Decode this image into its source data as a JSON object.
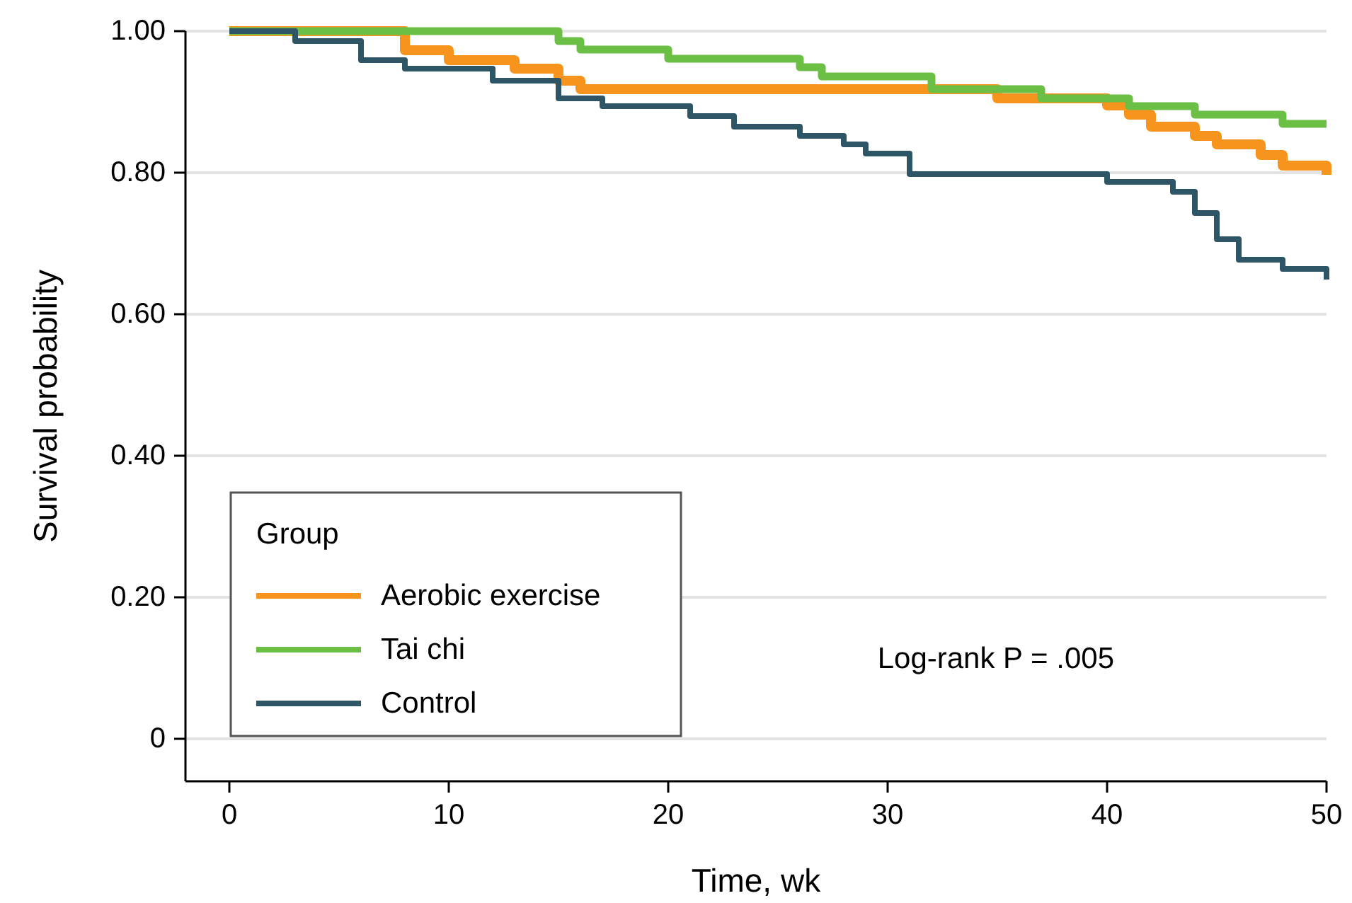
{
  "chart_data": {
    "type": "step",
    "xlabel": "Time, wk",
    "ylabel": "Survival probability",
    "legend_title": "Group",
    "legend": "bottom left",
    "grid": "y",
    "xlim": [
      -2,
      50
    ],
    "xticks": [
      0,
      10,
      20,
      30,
      40,
      50
    ],
    "ylim": [
      -0.06,
      1.0
    ],
    "yticks": [
      {
        "value": 0,
        "label": "0"
      },
      {
        "value": 0.2,
        "label": "0.20"
      },
      {
        "value": 0.4,
        "label": "0.40"
      },
      {
        "value": 0.6,
        "label": "0.60"
      },
      {
        "value": 0.8,
        "label": "0.80"
      },
      {
        "value": 1.0,
        "label": "1.00"
      }
    ],
    "annotations": [
      "Log-rank P = .005"
    ],
    "series": [
      {
        "name": "Aerobic exercise",
        "color": "#f7941d",
        "x": [
          0,
          8,
          10,
          13,
          15,
          16,
          35,
          40,
          41,
          42,
          44,
          45,
          47,
          48,
          50
        ],
        "values": [
          1.0,
          0.973,
          0.959,
          0.947,
          0.93,
          0.918,
          0.905,
          0.895,
          0.882,
          0.865,
          0.852,
          0.84,
          0.825,
          0.81,
          0.797
        ]
      },
      {
        "name": "Tai chi",
        "color": "#6cbf45",
        "x": [
          0,
          15,
          16,
          20,
          26,
          27,
          32,
          37,
          41,
          44,
          48,
          50
        ],
        "values": [
          1.0,
          0.986,
          0.974,
          0.961,
          0.949,
          0.936,
          0.918,
          0.905,
          0.894,
          0.882,
          0.869,
          0.869
        ]
      },
      {
        "name": "Control",
        "color": "#2e5566",
        "x": [
          0,
          3,
          6,
          8,
          12,
          15,
          17,
          21,
          23,
          26,
          28,
          29,
          31,
          40,
          43,
          44,
          45,
          46,
          48,
          50
        ],
        "values": [
          1.0,
          0.986,
          0.959,
          0.947,
          0.93,
          0.905,
          0.894,
          0.88,
          0.865,
          0.852,
          0.84,
          0.827,
          0.798,
          0.787,
          0.773,
          0.743,
          0.706,
          0.677,
          0.664,
          0.649
        ]
      }
    ]
  }
}
